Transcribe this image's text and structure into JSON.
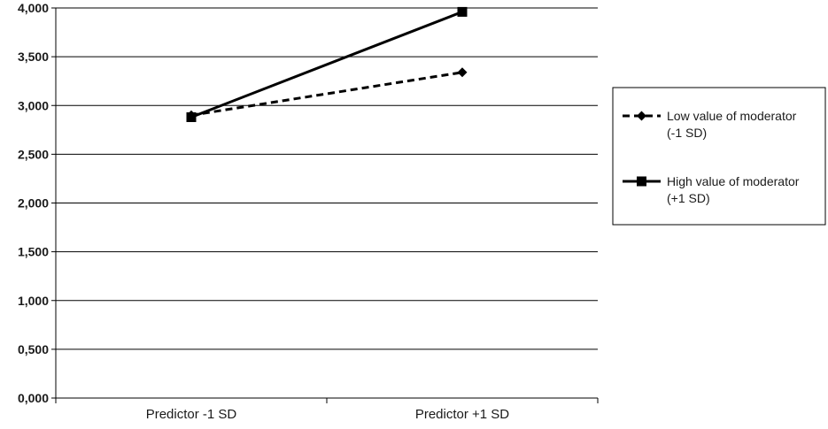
{
  "chart_data": {
    "type": "line",
    "categories": [
      "Predictor -1 SD",
      "Predictor +1 SD"
    ],
    "ylim": [
      0,
      4
    ],
    "y_ticks": [
      "0,000",
      "0,500",
      "1,000",
      "1,500",
      "2,000",
      "2,500",
      "3,000",
      "3,500",
      "4,000"
    ],
    "y_tick_values": [
      0,
      0.5,
      1,
      1.5,
      2,
      2.5,
      3,
      3.5,
      4
    ],
    "grid": true,
    "legend_position": "right",
    "series": [
      {
        "name_lines": [
          "Low value of moderator",
          "(-1 SD)"
        ],
        "values": [
          2.9,
          3.34
        ],
        "marker": "diamond",
        "line_style": "dashed",
        "color": "#000000"
      },
      {
        "name_lines": [
          "High value of moderator",
          "(+1 SD)"
        ],
        "values": [
          2.88,
          3.96
        ],
        "marker": "square",
        "line_style": "solid",
        "color": "#000000"
      }
    ]
  }
}
